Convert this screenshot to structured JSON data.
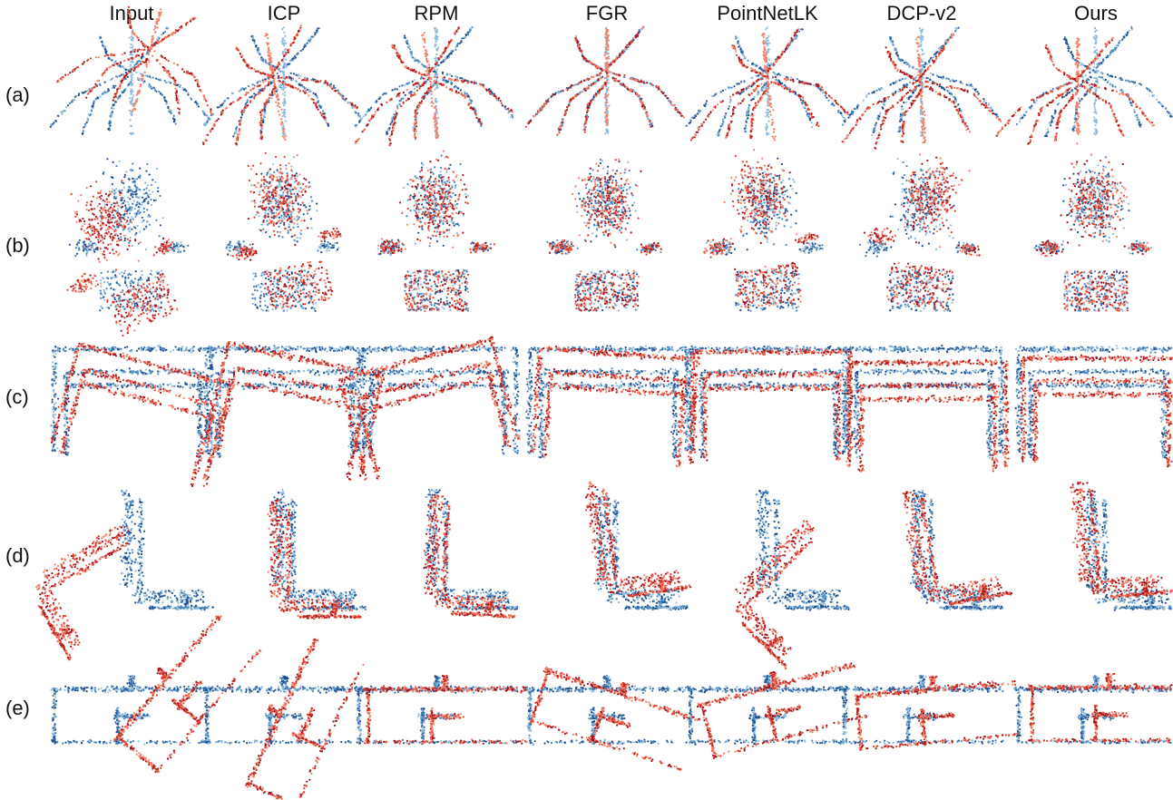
{
  "figure": {
    "columns": [
      "Input",
      "ICP",
      "RPM",
      "FGR",
      "PointNetLK",
      "DCP-v2",
      "Ours"
    ],
    "rows": [
      "(a)",
      "(b)",
      "(c)",
      "(d)",
      "(e)"
    ],
    "colors": {
      "target_light": "#8fbcdc",
      "target_mid": "#4a86c0",
      "target_dark": "#1f4f8f",
      "source_light": "#f4826a",
      "source_mid": "#e0402c",
      "source_dark": "#a3141e"
    },
    "objects": [
      "plant",
      "flower-pot",
      "table",
      "chair",
      "bench"
    ]
  }
}
